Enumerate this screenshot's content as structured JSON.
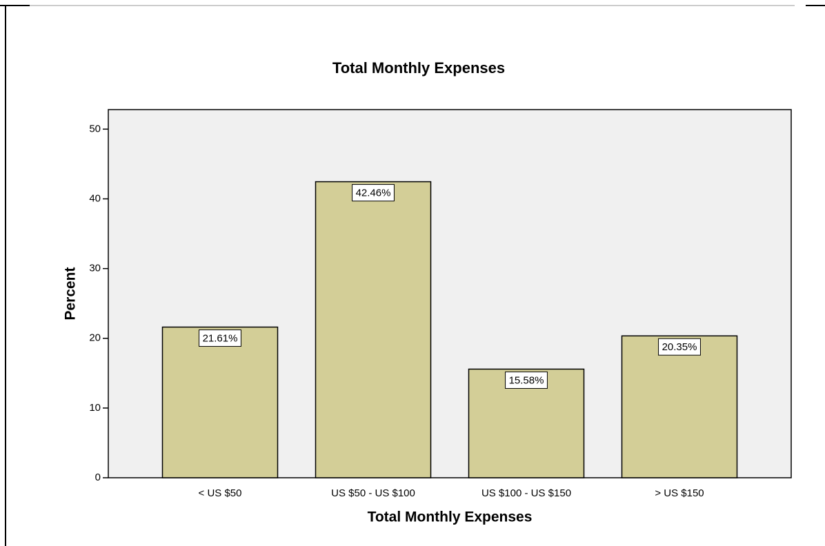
{
  "chart_data": {
    "type": "bar",
    "title": "Total Monthly Expenses",
    "x_label": "Total Monthly Expenses",
    "y_label": "Percent",
    "categories": [
      "< US $50",
      "US $50 - US $100",
      "US $100 - US $150",
      "> US $150"
    ],
    "values": [
      21.61,
      42.46,
      15.58,
      20.35
    ],
    "value_labels": [
      "21.61%",
      "42.46%",
      "15.58%",
      "20.35%"
    ],
    "color": "#d3ce97",
    "ylim": [
      0,
      52.8
    ],
    "yticks": [
      0,
      10,
      20,
      30,
      40,
      50
    ],
    "grid": false
  }
}
